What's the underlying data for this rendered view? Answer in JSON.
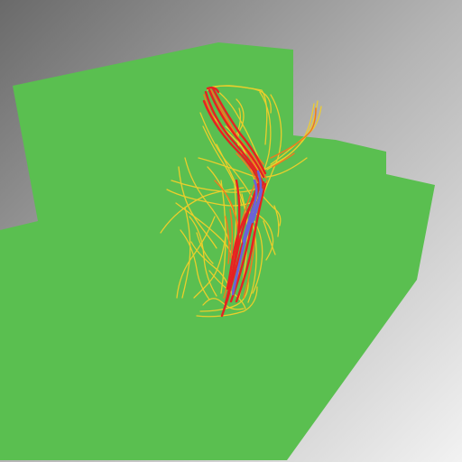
{
  "scene": {
    "background_gradient": [
      "#6a6a6a",
      "#b4b4b4",
      "#f2f2f2"
    ],
    "box_color": "#5abf50",
    "colors": {
      "yellow": "#f2cf2a",
      "orange": "#f07a1e",
      "red": "#e52222",
      "blue": "#6a62d8"
    },
    "elements": [
      "background",
      "green-box",
      "yellow-fibers",
      "orange-fibers",
      "red-fibers",
      "blue-core"
    ]
  }
}
